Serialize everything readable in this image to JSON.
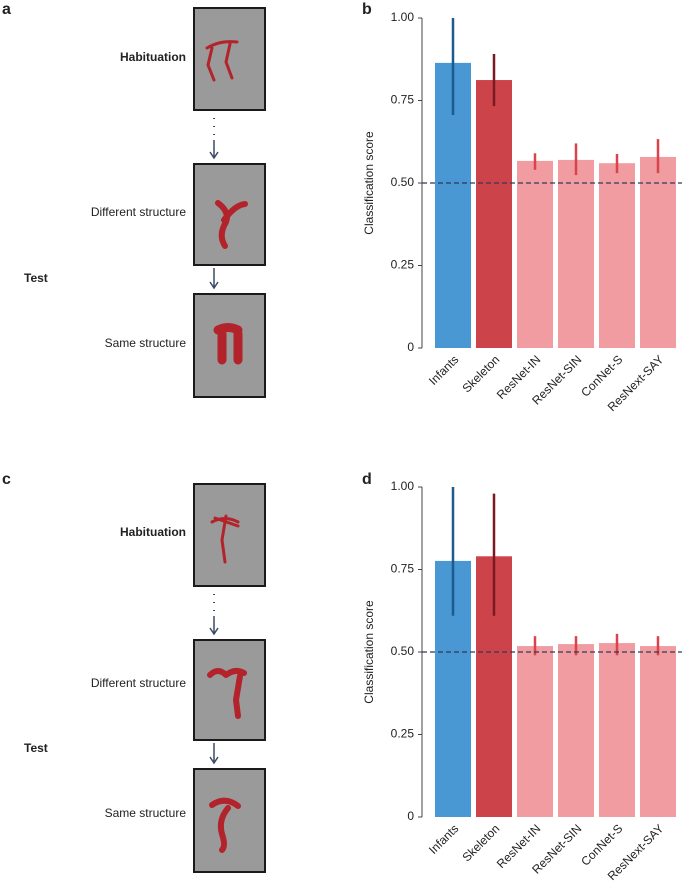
{
  "panels": {
    "a": "a",
    "b": "b",
    "c": "c",
    "d": "d"
  },
  "diagrams": [
    {
      "habituation": "Habituation",
      "different": "Different structure",
      "same": "Same structure",
      "test": "Test"
    },
    {
      "habituation": "Habituation",
      "different": "Different structure",
      "same": "Same structure",
      "test": "Test"
    }
  ],
  "chart_data": [
    {
      "type": "bar",
      "ylabel": "Classification score",
      "categories": [
        "Infants",
        "Skeleton",
        "ResNet-IN",
        "ResNet-SIN",
        "ConNet-S",
        "ResNext-SAY"
      ],
      "values": [
        0.864,
        0.812,
        0.567,
        0.57,
        0.56,
        0.579
      ],
      "ci": [
        [
          0.706,
          1.0
        ],
        [
          0.733,
          0.891
        ],
        [
          0.54,
          0.59
        ],
        [
          0.524,
          0.62
        ],
        [
          0.53,
          0.588
        ],
        [
          0.53,
          0.633
        ]
      ],
      "colors": [
        "#4a98d3",
        "#cc4449",
        "#f09ca0",
        "#f09ca0",
        "#f09ca0",
        "#f09ca0"
      ],
      "error_colors": [
        "#1b5b8f",
        "#7a1a20",
        "#d9434c",
        "#d9434c",
        "#d9434c",
        "#d9434c"
      ],
      "hline": 0.5,
      "ylim": [
        0,
        1.0
      ],
      "yticks": [
        0,
        0.25,
        {
          "value": 0.5,
          "label": "0.50"
        },
        0.75,
        {
          "value": 1.0,
          "label": "1.00"
        }
      ]
    },
    {
      "type": "bar",
      "ylabel": "Classification score",
      "categories": [
        "Infants",
        "Skeleton",
        "ResNet-IN",
        "ResNet-SIN",
        "ConNet-S",
        "ResNext-SAY"
      ],
      "values": [
        0.776,
        0.79,
        0.518,
        0.524,
        0.527,
        0.518
      ],
      "ci": [
        [
          0.61,
          1.0
        ],
        [
          0.61,
          0.98
        ],
        [
          0.49,
          0.548
        ],
        [
          0.49,
          0.548
        ],
        [
          0.49,
          0.555
        ],
        [
          0.49,
          0.548
        ]
      ],
      "colors": [
        "#4a98d3",
        "#cc4449",
        "#f09ca0",
        "#f09ca0",
        "#f09ca0",
        "#f09ca0"
      ],
      "error_colors": [
        "#1b5b8f",
        "#7a1a20",
        "#d9434c",
        "#d9434c",
        "#d9434c",
        "#d9434c"
      ],
      "hline": 0.5,
      "ylim": [
        0,
        1.0
      ],
      "yticks": [
        0,
        0.25,
        {
          "value": 0.5,
          "label": "0.50"
        },
        0.75,
        {
          "value": 1.0,
          "label": "1.00"
        }
      ]
    }
  ]
}
